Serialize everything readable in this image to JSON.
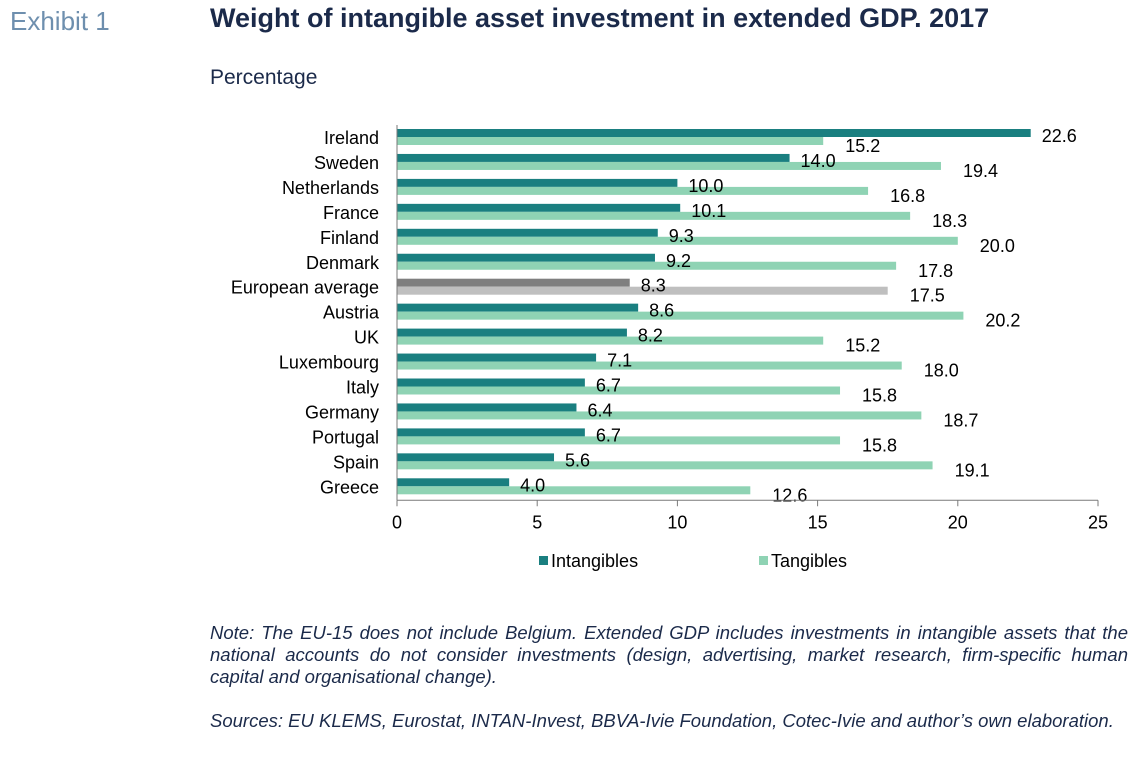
{
  "exhibit_label": "Exhibit 1",
  "colors": {
    "intangibles": "#1a7f80",
    "tangibles": "#8fd3b4",
    "avg_intangibles": "#7f7f7f",
    "avg_tangibles": "#bfbfbf"
  },
  "chart_data": {
    "type": "bar",
    "orientation": "horizontal",
    "title": "Weight of intangible asset investment in extended GDP. 2017",
    "subtitle": "Percentage",
    "categories": [
      "Ireland",
      "Sweden",
      "Netherlands",
      "France",
      "Finland",
      "Denmark",
      "European average",
      "Austria",
      "UK",
      "Luxembourg",
      "Italy",
      "Germany",
      "Portugal",
      "Spain",
      "Greece"
    ],
    "series": [
      {
        "name": "Intangibles",
        "values": [
          22.6,
          14.0,
          10.0,
          10.1,
          9.3,
          9.2,
          8.3,
          8.6,
          8.2,
          7.1,
          6.7,
          6.4,
          6.7,
          5.6,
          4.0
        ]
      },
      {
        "name": "Tangibles",
        "values": [
          15.2,
          19.4,
          16.8,
          18.3,
          20.0,
          17.8,
          17.5,
          20.2,
          15.2,
          18.0,
          15.8,
          18.7,
          15.8,
          19.1,
          12.6
        ]
      }
    ],
    "highlight_category": "European average",
    "xlim": [
      0,
      25
    ],
    "xticks": [
      "0",
      "5",
      "10",
      "15",
      "20",
      "25"
    ],
    "legend_position": "bottom",
    "grid": false
  },
  "note": "Note: The EU-15 does not include Belgium. Extended GDP includes investments in intangible assets that the national accounts do not consider investments (design, advertising, market research, firm-specific human capital and organisational change).",
  "sources": "Sources: EU KLEMS, Eurostat, INTAN-Invest, BBVA-Ivie Foundation, Cotec-Ivie and author’s own elaboration."
}
